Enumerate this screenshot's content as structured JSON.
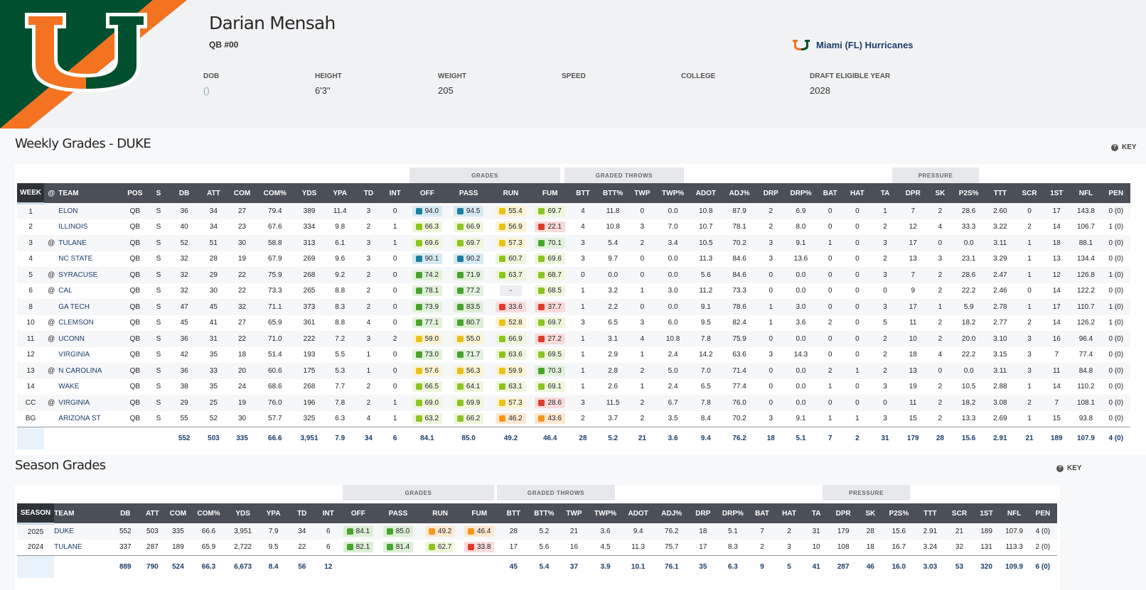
{
  "player": {
    "name": "Darian Mensah",
    "position": "QB #00",
    "team": "Miami (FL) Hurricanes"
  },
  "meta": {
    "dob_label": "DOB",
    "dob_value": "()",
    "height_label": "HEIGHT",
    "height_value": "6'3\"",
    "weight_label": "WEIGHT",
    "weight_value": "205",
    "speed_label": "SPEED",
    "college_label": "COLLEGE",
    "draft_label": "DRAFT ELIGIBLE YEAR",
    "draft_value": "2028"
  },
  "colors": {
    "green": "#005030",
    "orange": "#f47321",
    "header_row": "#4b4f57",
    "link": "#1c3d6b",
    "g_teal": "#1b7fa1",
    "g_green": "#49a32e",
    "g_lime": "#8cc520",
    "g_yellow": "#e8c21a",
    "g_orange": "#f5971d",
    "g_red": "#e03a2b"
  },
  "weekly": {
    "title": "Weekly Grades - DUKE",
    "key_label": "KEY",
    "groups": {
      "grades": "GRADES",
      "graded_throws": "GRADED THROWS",
      "pressure": "PRESSURE"
    },
    "columns": [
      "WEEK",
      "@",
      "TEAM",
      "POS",
      "S",
      "DB",
      "ATT",
      "COM",
      "COM%",
      "YDS",
      "YPA",
      "TD",
      "INT",
      "OFF",
      "PASS",
      "RUN",
      "FUM",
      "BTT",
      "BTT%",
      "TWP",
      "TWP%",
      "ADOT",
      "ADJ%",
      "DRP",
      "DRP%",
      "BAT",
      "HAT",
      "TA",
      "DPR",
      "SK",
      "P2S%",
      "TTT",
      "SCR",
      "1ST",
      "NFL",
      "PEN"
    ],
    "rows": [
      [
        "1",
        "",
        "ELON",
        "QB",
        "S",
        "36",
        "34",
        "27",
        "79.4",
        "389",
        "11.4",
        "3",
        "0",
        "94.0",
        "94.5",
        "55.4",
        "69.7",
        "4",
        "11.8",
        "0",
        "0.0",
        "10.8",
        "87.9",
        "2",
        "6.9",
        "0",
        "0",
        "1",
        "7",
        "2",
        "28.6",
        "2.60",
        "0",
        "17",
        "143.8",
        "0 (0)"
      ],
      [
        "2",
        "",
        "ILLINOIS",
        "QB",
        "S",
        "40",
        "34",
        "23",
        "67.6",
        "334",
        "9.8",
        "2",
        "1",
        "66.3",
        "66.9",
        "56.9",
        "22.1",
        "4",
        "10.8",
        "3",
        "7.0",
        "10.7",
        "78.1",
        "2",
        "8.0",
        "0",
        "0",
        "2",
        "12",
        "4",
        "33.3",
        "3.22",
        "2",
        "14",
        "106.7",
        "1 (0)"
      ],
      [
        "3",
        "@",
        "TULANE",
        "QB",
        "S",
        "52",
        "51",
        "30",
        "58.8",
        "313",
        "6.1",
        "3",
        "1",
        "69.6",
        "69.7",
        "57.3",
        "70.1",
        "3",
        "5.4",
        "2",
        "3.4",
        "10.5",
        "70.2",
        "3",
        "9.1",
        "1",
        "0",
        "3",
        "17",
        "0",
        "0.0",
        "3.11",
        "1",
        "18",
        "88.1",
        "0 (0)"
      ],
      [
        "4",
        "",
        "NC STATE",
        "QB",
        "S",
        "32",
        "28",
        "19",
        "67.9",
        "269",
        "9.6",
        "3",
        "0",
        "90.1",
        "90.2",
        "60.7",
        "69.6",
        "3",
        "9.7",
        "0",
        "0.0",
        "11.3",
        "84.6",
        "3",
        "13.6",
        "0",
        "0",
        "2",
        "13",
        "3",
        "23.1",
        "3.29",
        "1",
        "13",
        "134.4",
        "0 (0)"
      ],
      [
        "5",
        "@",
        "SYRACUSE",
        "QB",
        "S",
        "32",
        "29",
        "22",
        "75.9",
        "268",
        "9.2",
        "2",
        "0",
        "74.2",
        "71.9",
        "63.7",
        "68.7",
        "0",
        "0.0",
        "0",
        "0.0",
        "5.6",
        "84.6",
        "0",
        "0.0",
        "0",
        "0",
        "3",
        "7",
        "2",
        "28.6",
        "2.47",
        "1",
        "12",
        "126.8",
        "1 (0)"
      ],
      [
        "6",
        "@",
        "CAL",
        "QB",
        "S",
        "32",
        "30",
        "22",
        "73.3",
        "265",
        "8.8",
        "2",
        "0",
        "78.1",
        "77.2",
        "-",
        "68.5",
        "1",
        "3.2",
        "1",
        "3.0",
        "11.2",
        "73.3",
        "0",
        "0.0",
        "0",
        "0",
        "0",
        "9",
        "2",
        "22.2",
        "2.46",
        "0",
        "14",
        "122.2",
        "0 (0)"
      ],
      [
        "8",
        "",
        "GA TECH",
        "QB",
        "S",
        "47",
        "45",
        "32",
        "71.1",
        "373",
        "8.3",
        "2",
        "0",
        "73.9",
        "83.5",
        "33.6",
        "37.7",
        "1",
        "2.2",
        "0",
        "0.0",
        "9.1",
        "78.6",
        "1",
        "3.0",
        "0",
        "0",
        "3",
        "17",
        "1",
        "5.9",
        "2.78",
        "1",
        "17",
        "110.7",
        "1 (0)"
      ],
      [
        "10",
        "@",
        "CLEMSON",
        "QB",
        "S",
        "45",
        "41",
        "27",
        "65.9",
        "361",
        "8.8",
        "4",
        "0",
        "77.1",
        "80.7",
        "52.8",
        "69.7",
        "3",
        "6.5",
        "3",
        "6.0",
        "9.5",
        "82.4",
        "1",
        "3.6",
        "2",
        "0",
        "5",
        "11",
        "2",
        "18.2",
        "2.77",
        "2",
        "14",
        "126.2",
        "1 (0)"
      ],
      [
        "11",
        "@",
        "UCONN",
        "QB",
        "S",
        "36",
        "31",
        "22",
        "71.0",
        "222",
        "7.2",
        "3",
        "2",
        "59.0",
        "55.0",
        "66.9",
        "27.2",
        "1",
        "3.1",
        "4",
        "10.8",
        "7.8",
        "75.9",
        "0",
        "0.0",
        "0",
        "0",
        "2",
        "10",
        "2",
        "20.0",
        "3.10",
        "3",
        "16",
        "96.4",
        "0 (0)"
      ],
      [
        "12",
        "",
        "VIRGINIA",
        "QB",
        "S",
        "42",
        "35",
        "18",
        "51.4",
        "193",
        "5.5",
        "1",
        "0",
        "73.0",
        "71.7",
        "63.6",
        "69.5",
        "1",
        "2.9",
        "1",
        "2.4",
        "14.2",
        "63.6",
        "3",
        "14.3",
        "0",
        "0",
        "2",
        "18",
        "4",
        "22.2",
        "3.15",
        "3",
        "7",
        "77.4",
        "0 (0)"
      ],
      [
        "13",
        "@",
        "N CAROLINA",
        "QB",
        "S",
        "36",
        "33",
        "20",
        "60.6",
        "175",
        "5.3",
        "1",
        "0",
        "57.6",
        "56.3",
        "59.9",
        "70.3",
        "1",
        "2.8",
        "2",
        "5.0",
        "7.0",
        "71.4",
        "0",
        "0.0",
        "2",
        "1",
        "2",
        "13",
        "0",
        "0.0",
        "3.11",
        "3",
        "11",
        "84.8",
        "0 (0)"
      ],
      [
        "14",
        "",
        "WAKE",
        "QB",
        "S",
        "38",
        "35",
        "24",
        "68.6",
        "268",
        "7.7",
        "2",
        "0",
        "66.5",
        "64.1",
        "63.1",
        "69.1",
        "1",
        "2.6",
        "1",
        "2.4",
        "6.5",
        "77.4",
        "0",
        "0.0",
        "1",
        "0",
        "3",
        "19",
        "2",
        "10.5",
        "2.88",
        "1",
        "14",
        "110.2",
        "0 (0)"
      ],
      [
        "CC",
        "@",
        "VIRGINIA",
        "QB",
        "S",
        "29",
        "25",
        "19",
        "76.0",
        "196",
        "7.8",
        "2",
        "1",
        "69.0",
        "69.9",
        "57.3",
        "28.6",
        "3",
        "11.5",
        "2",
        "6.7",
        "7.8",
        "76.0",
        "0",
        "0.0",
        "0",
        "0",
        "0",
        "11",
        "2",
        "18.2",
        "3.08",
        "2",
        "7",
        "108.1",
        "0 (0)"
      ],
      [
        "BG",
        "",
        "ARIZONA ST",
        "QB",
        "S",
        "55",
        "52",
        "30",
        "57.7",
        "325",
        "6.3",
        "4",
        "1",
        "63.2",
        "66.2",
        "46.2",
        "43.6",
        "2",
        "3.7",
        "2",
        "3.5",
        "8.4",
        "70.2",
        "3",
        "9.1",
        "1",
        "1",
        "3",
        "15",
        "2",
        "13.3",
        "2.69",
        "1",
        "15",
        "93.8",
        "0 (0)"
      ]
    ],
    "totals": [
      "",
      "",
      "",
      "",
      "",
      "552",
      "503",
      "335",
      "66.6",
      "3,951",
      "7.9",
      "34",
      "6",
      "84.1",
      "85.0",
      "49.2",
      "46.4",
      "28",
      "5.2",
      "21",
      "3.6",
      "9.4",
      "76.2",
      "18",
      "5.1",
      "7",
      "2",
      "31",
      "179",
      "28",
      "15.6",
      "2.91",
      "21",
      "189",
      "107.9",
      "4 (0)"
    ]
  },
  "season": {
    "title": "Season Grades",
    "key_label": "KEY",
    "groups": {
      "grades": "GRADES",
      "graded_throws": "GRADED THROWS",
      "pressure": "PRESSURE"
    },
    "columns": [
      "SEASON",
      "TEAM",
      "DB",
      "ATT",
      "COM",
      "COM%",
      "YDS",
      "YPA",
      "TD",
      "INT",
      "OFF",
      "PASS",
      "RUN",
      "FUM",
      "BTT",
      "BTT%",
      "TWP",
      "TWP%",
      "ADOT",
      "ADJ%",
      "DRP",
      "DRP%",
      "BAT",
      "HAT",
      "TA",
      "DPR",
      "SK",
      "P2S%",
      "TTT",
      "SCR",
      "1ST",
      "NFL",
      "PEN"
    ],
    "rows": [
      [
        "2025",
        "DUKE",
        "552",
        "503",
        "335",
        "66.6",
        "3,951",
        "7.9",
        "34",
        "6",
        "84.1",
        "85.0",
        "49.2",
        "46.4",
        "28",
        "5.2",
        "21",
        "3.6",
        "9.4",
        "76.2",
        "18",
        "5.1",
        "7",
        "2",
        "31",
        "179",
        "28",
        "15.6",
        "2.91",
        "21",
        "189",
        "107.9",
        "4 (0)"
      ],
      [
        "2024",
        "TULANE",
        "337",
        "287",
        "189",
        "65.9",
        "2,722",
        "9.5",
        "22",
        "6",
        "82.1",
        "81.4",
        "62.7",
        "33.8",
        "17",
        "5.6",
        "16",
        "4.5",
        "11.3",
        "75.7",
        "17",
        "8.3",
        "2",
        "3",
        "10",
        "108",
        "18",
        "16.7",
        "3.24",
        "32",
        "131",
        "113.3",
        "2 (0)"
      ]
    ],
    "totals": [
      "",
      "",
      "889",
      "790",
      "524",
      "66.3",
      "6,673",
      "8.4",
      "56",
      "12",
      "",
      "",
      "",
      "",
      "45",
      "5.4",
      "37",
      "3.9",
      "10.1",
      "76.1",
      "35",
      "6.3",
      "9",
      "5",
      "41",
      "287",
      "46",
      "16.0",
      "3.03",
      "53",
      "320",
      "109.9",
      "6 (0)"
    ]
  }
}
